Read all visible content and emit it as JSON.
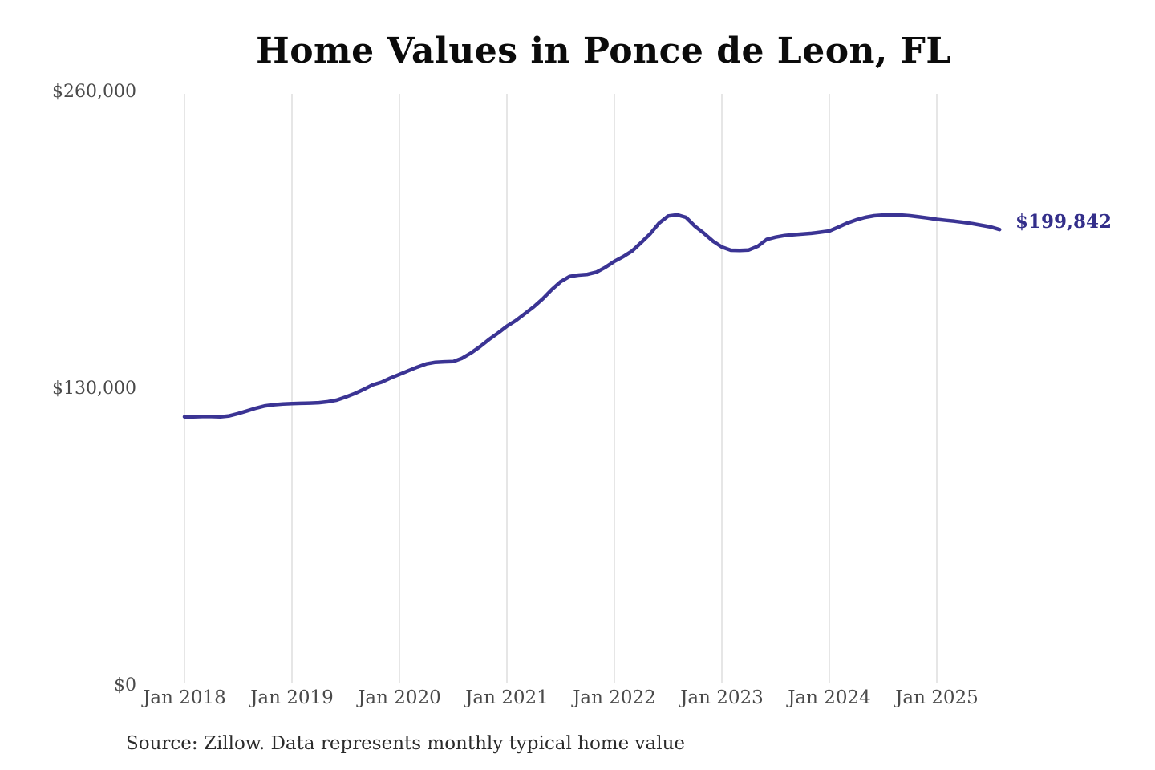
{
  "page": {
    "background_color": "#ffffff"
  },
  "chart": {
    "title": "Home Values in Ponce de Leon, FL",
    "end_label": "$199,842",
    "source_note": "Source: Zillow. Data represents monthly typical home value"
  },
  "chart_data": {
    "type": "line",
    "title": "Home Values in Ponce de Leon, FL",
    "xlabel": "",
    "ylabel": "",
    "legend": "none",
    "grid": "vertical-only",
    "ylim": [
      0,
      260000
    ],
    "y_tick_values": [
      0,
      130000,
      260000
    ],
    "y_tick_labels": [
      "$0",
      "$130,000",
      "$260,000"
    ],
    "x_tick_labels": [
      "Jan 2018",
      "Jan 2019",
      "Jan 2020",
      "Jan 2021",
      "Jan 2022",
      "Jan 2023",
      "Jan 2024",
      "Jan 2025"
    ],
    "colors": {
      "line": "#3b3494",
      "end_label": "#332e8a",
      "axis_text": "#4a4a4a",
      "gridline": "#cccccc",
      "title": "#0b0b0b",
      "source": "#2b2b2b"
    },
    "series": [
      {
        "name": "Monthly typical home value",
        "frequency": "monthly",
        "start_month": "2018-01",
        "end_month": "2025-08",
        "final_value": 199842,
        "final_value_label": "$199,842",
        "values": [
          117800,
          117800,
          117900,
          117900,
          117800,
          118200,
          119200,
          120400,
          121600,
          122600,
          123100,
          123400,
          123600,
          123700,
          123800,
          124000,
          124400,
          125100,
          126500,
          128000,
          129800,
          131800,
          133000,
          134800,
          136400,
          138000,
          139600,
          141000,
          141700,
          141900,
          142000,
          143500,
          145800,
          148600,
          151700,
          154500,
          157500,
          160000,
          163000,
          166000,
          169500,
          173500,
          177000,
          179300,
          179900,
          180200,
          181200,
          183300,
          185900,
          188000,
          190500,
          194200,
          198000,
          202700,
          205800,
          206300,
          205200,
          201300,
          198200,
          194800,
          192200,
          190800,
          190700,
          190900,
          192500,
          195500,
          196500,
          197200,
          197600,
          197900,
          198200,
          198700,
          199200,
          200900,
          202700,
          204100,
          205200,
          205900,
          206200,
          206400,
          206200,
          205900,
          205400,
          204900,
          204300,
          203900,
          203500,
          203000,
          202400,
          201700,
          201000,
          199842
        ]
      }
    ]
  }
}
